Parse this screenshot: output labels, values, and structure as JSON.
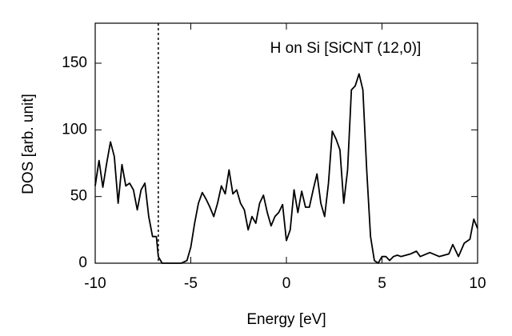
{
  "chart_data": {
    "type": "line",
    "annotation": "H on Si  [SiCNT (12,0)]",
    "x_label": "Energy  [eV]",
    "y_label": "DOS [arb. unit]",
    "xlim": [
      -10,
      10
    ],
    "ylim": [
      0,
      180
    ],
    "xticks": [
      -10,
      -5,
      0,
      5,
      10
    ],
    "yticks": [
      0,
      50,
      100,
      150
    ],
    "vline": -6.7,
    "vline_style": "dashed",
    "color": "#000000",
    "x": [
      -10,
      -9.8,
      -9.6,
      -9.4,
      -9.2,
      -9.0,
      -8.8,
      -8.6,
      -8.4,
      -8.2,
      -8.0,
      -7.8,
      -7.6,
      -7.4,
      -7.2,
      -7.0,
      -6.8,
      -6.7,
      -6.5,
      -6.0,
      -5.5,
      -5.2,
      -5.0,
      -4.8,
      -4.6,
      -4.4,
      -4.2,
      -4.0,
      -3.8,
      -3.6,
      -3.4,
      -3.2,
      -3.0,
      -2.8,
      -2.6,
      -2.4,
      -2.2,
      -2.0,
      -1.8,
      -1.6,
      -1.4,
      -1.2,
      -1.0,
      -0.8,
      -0.6,
      -0.4,
      -0.2,
      0,
      0.2,
      0.4,
      0.6,
      0.8,
      1.0,
      1.2,
      1.4,
      1.6,
      1.8,
      2.0,
      2.2,
      2.4,
      2.6,
      2.8,
      3.0,
      3.2,
      3.4,
      3.6,
      3.8,
      4.0,
      4.2,
      4.4,
      4.6,
      4.8,
      5.0,
      5.2,
      5.4,
      5.6,
      5.8,
      6.0,
      6.5,
      6.8,
      7.0,
      7.5,
      8.0,
      8.5,
      8.7,
      9.0,
      9.3,
      9.6,
      9.8,
      10.0
    ],
    "values": [
      58,
      77,
      57,
      75,
      91,
      80,
      45,
      74,
      58,
      60,
      55,
      40,
      55,
      60,
      35,
      20,
      20,
      5,
      0,
      0,
      0,
      2,
      12,
      30,
      45,
      53,
      48,
      42,
      35,
      45,
      58,
      52,
      70,
      52,
      55,
      45,
      40,
      25,
      35,
      30,
      45,
      51,
      38,
      28,
      35,
      38,
      44,
      17,
      25,
      55,
      38,
      54,
      42,
      42,
      55,
      67,
      45,
      35,
      60,
      99,
      93,
      85,
      45,
      70,
      130,
      133,
      142,
      130,
      70,
      20,
      2,
      0,
      5,
      5,
      2,
      5,
      6,
      5,
      7,
      9,
      5,
      8,
      5,
      7,
      14,
      5,
      15,
      18,
      33,
      26
    ]
  }
}
